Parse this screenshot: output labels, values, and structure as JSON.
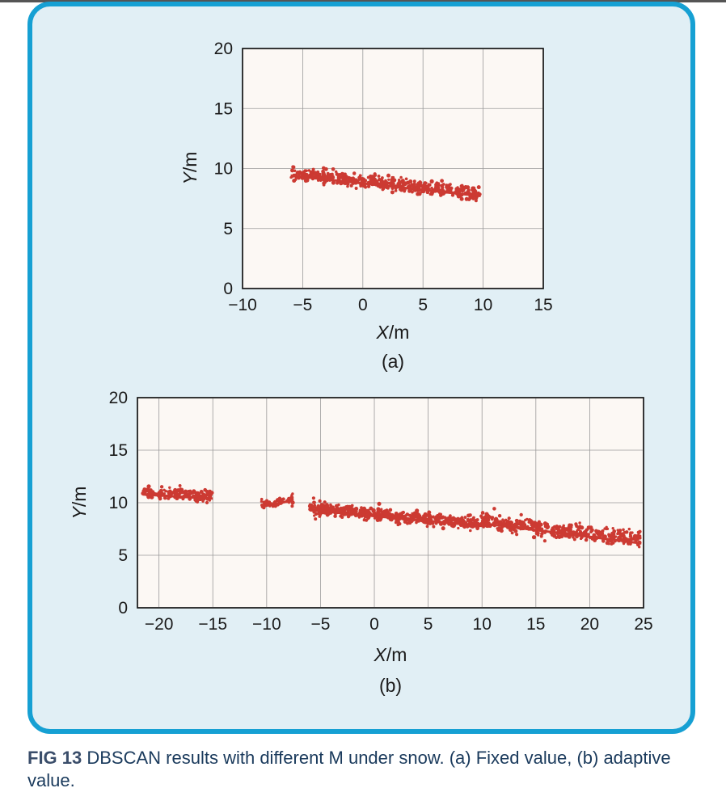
{
  "caption": {
    "label": "FIG 13",
    "text": "DBSCAN results with different M under snow. (a) Fixed value, (b) adaptive value."
  },
  "colors": {
    "panel_bg": "#e1eff5",
    "panel_border": "#16a0d3",
    "plot_bg": "#fcf8f4",
    "points": "#cc3a32"
  },
  "chart_data": [
    {
      "type": "scatter",
      "panel_label": "(a)",
      "xlabel_italic": "X",
      "xlabel_unit": "/m",
      "ylabel_italic": "Y",
      "ylabel_unit": "/m",
      "xlim": [
        -10,
        15
      ],
      "ylim": [
        0,
        20
      ],
      "xticks": [
        -10,
        -5,
        0,
        5,
        10,
        15
      ],
      "yticks": [
        0,
        5,
        10,
        15,
        20
      ],
      "xtick_labels": [
        "−10",
        "−5",
        "0",
        "5",
        "10",
        "15"
      ],
      "ytick_labels": [
        "0",
        "5",
        "10",
        "15",
        "20"
      ],
      "grid": true,
      "clusters": [
        {
          "x_range": [
            -6,
            9.8
          ],
          "y_start": 9.6,
          "y_end": 7.9,
          "spread": 0.55,
          "count": 520
        }
      ]
    },
    {
      "type": "scatter",
      "panel_label": "(b)",
      "xlabel_italic": "X",
      "xlabel_unit": "/m",
      "ylabel_italic": "Y",
      "ylabel_unit": "/m",
      "xlim": [
        -22,
        25
      ],
      "ylim": [
        0,
        20
      ],
      "xticks": [
        -20,
        -15,
        -10,
        -5,
        0,
        5,
        10,
        15,
        20,
        25
      ],
      "yticks": [
        0,
        5,
        10,
        15,
        20
      ],
      "xtick_labels": [
        "−20",
        "−15",
        "−10",
        "−5",
        "0",
        "5",
        "10",
        "15",
        "20",
        "25"
      ],
      "ytick_labels": [
        "0",
        "5",
        "10",
        "15",
        "20"
      ],
      "grid": true,
      "clusters": [
        {
          "x_range": [
            -21.5,
            -15
          ],
          "y_start": 11.0,
          "y_end": 10.6,
          "spread": 0.6,
          "count": 160
        },
        {
          "x_range": [
            -10.5,
            -7.5
          ],
          "y_start": 9.8,
          "y_end": 10.4,
          "spread": 0.5,
          "count": 50
        },
        {
          "x_range": [
            -6,
            10
          ],
          "y_start": 9.5,
          "y_end": 8.0,
          "spread": 0.6,
          "count": 520
        },
        {
          "x_range": [
            10,
            24.8
          ],
          "y_start": 8.3,
          "y_end": 6.4,
          "spread": 0.75,
          "count": 420
        }
      ]
    }
  ]
}
